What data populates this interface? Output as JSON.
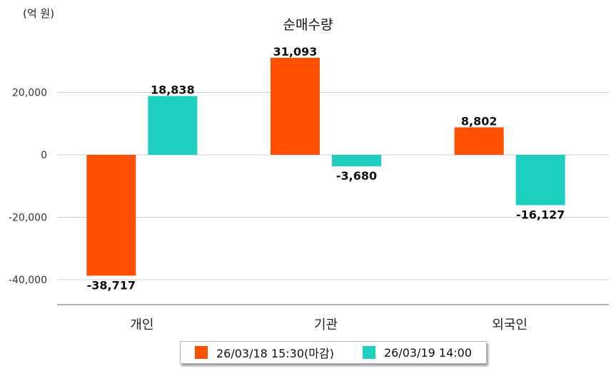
{
  "chart_data": {
    "type": "bar",
    "title": "순매수량",
    "unit_label": "(억 원)",
    "categories": [
      "개인",
      "기관",
      "외국인"
    ],
    "series": [
      {
        "name": "26/03/18 15:30(마감)",
        "color": "#ff5000",
        "values": [
          -38717,
          31093,
          8802
        ]
      },
      {
        "name": "26/03/19 14:00",
        "color": "#1ccfbf",
        "values": [
          18838,
          -3680,
          -16127
        ]
      }
    ],
    "yticks": [
      20000,
      0,
      -20000,
      -40000
    ],
    "ylim": [
      -48000,
      40000
    ],
    "grid": true,
    "legend_position": "bottom"
  }
}
